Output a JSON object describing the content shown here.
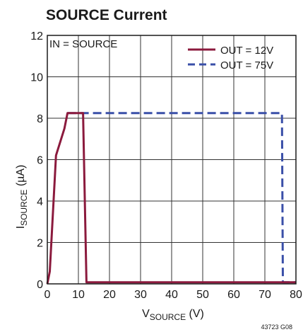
{
  "chart_data": {
    "type": "line",
    "title": "SOURCE Current",
    "xlabel": {
      "main": "V",
      "sub": "SOURCE",
      "unit": " (V)"
    },
    "ylabel": {
      "main": "I",
      "sub": "SOURCE",
      "unit": " (µA)"
    },
    "xlim": [
      0,
      80
    ],
    "ylim": [
      0,
      12
    ],
    "x_ticks": [
      0,
      10,
      20,
      30,
      40,
      50,
      60,
      70,
      80
    ],
    "y_ticks": [
      0,
      2,
      4,
      6,
      8,
      10,
      12
    ],
    "grid": true,
    "legend_position": "top-right",
    "annotation": "IN = SOURCE",
    "figure_code": "43723 G08",
    "series": [
      {
        "name": "OUT = 12V",
        "color": "#8b1a3d",
        "style": "solid",
        "points": [
          [
            0,
            0
          ],
          [
            0.8,
            0.6
          ],
          [
            2.8,
            6.2
          ],
          [
            5.5,
            7.5
          ],
          [
            6.5,
            8.25
          ],
          [
            11.5,
            8.25
          ],
          [
            12.6,
            0.08
          ],
          [
            80,
            0.08
          ]
        ]
      },
      {
        "name": "OUT = 75V",
        "color": "#3a4fa8",
        "style": "dashed",
        "points": [
          [
            6.5,
            8.25
          ],
          [
            75.5,
            8.25
          ],
          [
            75.8,
            0.08
          ],
          [
            80,
            0.08
          ]
        ]
      }
    ]
  }
}
